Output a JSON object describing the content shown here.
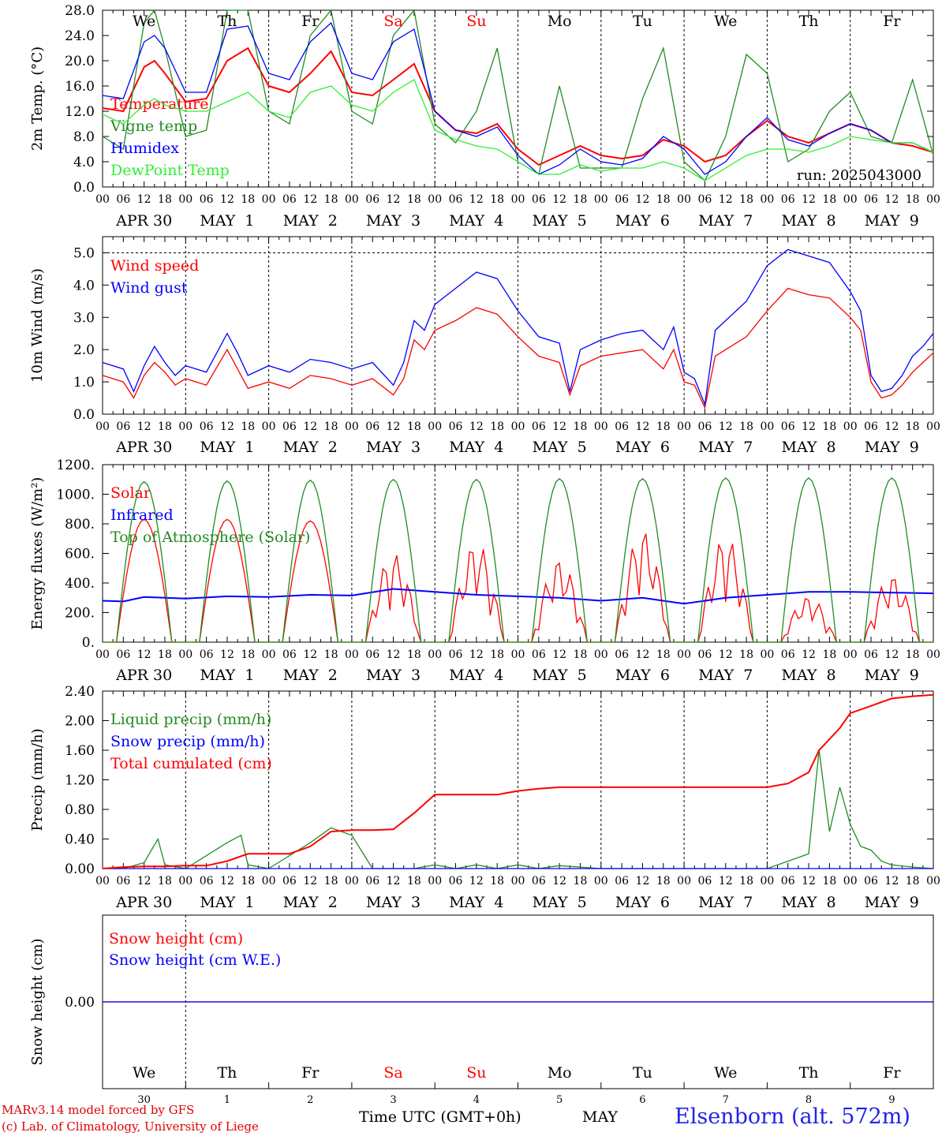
{
  "chart_data": [
    {
      "type": "line",
      "ylabel": "2m Temp. (°C)",
      "ylim": [
        0,
        28
      ],
      "yticks": [
        "0.0",
        "4.0",
        "8.0",
        "12.0",
        "16.0",
        "20.0",
        "24.0",
        "28.0"
      ],
      "annotation": "run: 2025043000",
      "x_unit": "hours from 2025-04-30 00 UTC",
      "series": [
        {
          "name": "Temperature",
          "color": "#ff0000",
          "x": [
            0,
            6,
            12,
            15,
            18,
            24,
            30,
            36,
            42,
            48,
            54,
            60,
            66,
            72,
            78,
            84,
            90,
            96,
            102,
            108,
            114,
            120,
            126,
            132,
            138,
            144,
            150,
            156,
            162,
            168,
            174,
            180,
            186,
            192,
            198,
            204,
            210,
            216,
            222,
            228,
            234,
            240
          ],
          "values": [
            12.5,
            12,
            19,
            20,
            18,
            13.5,
            14,
            20,
            22,
            16,
            15,
            18,
            21.5,
            15,
            14.5,
            17,
            19.5,
            12,
            9,
            8.5,
            10,
            6,
            3.5,
            5,
            6.5,
            5,
            4.5,
            5,
            7.5,
            6.5,
            4,
            5,
            8,
            10.5,
            8,
            7,
            8.5,
            10,
            9,
            7,
            6.5,
            5.5
          ]
        },
        {
          "name": "Vigne temp",
          "color": "#228b22",
          "x": [
            0,
            6,
            12,
            15,
            18,
            24,
            30,
            36,
            42,
            48,
            54,
            60,
            66,
            72,
            78,
            84,
            90,
            96,
            102,
            108,
            114,
            120,
            126,
            132,
            138,
            144,
            150,
            156,
            162,
            168,
            174,
            180,
            186,
            192,
            198,
            204,
            210,
            216,
            222,
            228,
            234,
            240
          ],
          "values": [
            8,
            6,
            26,
            28,
            22,
            8,
            9,
            28,
            28,
            12,
            10,
            24,
            28,
            12,
            10,
            24,
            28,
            10,
            7,
            12,
            22,
            4,
            2,
            16,
            3,
            3,
            3,
            14,
            22,
            4,
            1,
            8,
            21,
            18,
            4,
            6,
            12,
            15,
            8,
            7,
            17,
            5
          ]
        },
        {
          "name": "Humidex",
          "color": "#0000ff",
          "x": [
            0,
            6,
            12,
            15,
            18,
            24,
            30,
            36,
            42,
            48,
            54,
            60,
            66,
            72,
            78,
            84,
            90,
            96,
            102,
            108,
            114,
            120,
            126,
            132,
            138,
            144,
            150,
            156,
            162,
            168,
            174,
            180,
            186,
            192,
            198,
            204,
            210,
            216,
            222,
            228,
            234,
            240
          ],
          "values": [
            14.5,
            14,
            23,
            24,
            22,
            15,
            15,
            25,
            25.5,
            18,
            17,
            23,
            26,
            18,
            17,
            23,
            25,
            12,
            9,
            8,
            9.5,
            5,
            2,
            3.5,
            6,
            4,
            3.5,
            4.5,
            8,
            6,
            2,
            4,
            8,
            11,
            7.5,
            6.5,
            8.5,
            10,
            9,
            7,
            7,
            5.5
          ]
        },
        {
          "name": "DewPoint Temp",
          "color": "#33ee33",
          "x": [
            0,
            6,
            12,
            15,
            18,
            24,
            30,
            36,
            42,
            48,
            54,
            60,
            66,
            72,
            78,
            84,
            90,
            96,
            102,
            108,
            114,
            120,
            126,
            132,
            138,
            144,
            150,
            156,
            162,
            168,
            174,
            180,
            186,
            192,
            198,
            204,
            210,
            216,
            222,
            228,
            234,
            240
          ],
          "values": [
            11.5,
            10,
            13,
            14,
            13,
            12,
            12,
            13.5,
            15,
            12,
            11,
            15,
            16,
            13,
            12,
            15,
            17,
            9,
            7.5,
            6.5,
            6,
            4,
            2,
            2,
            3.5,
            2.5,
            3,
            3,
            4,
            3,
            1,
            3,
            5,
            6,
            6,
            5.5,
            6.5,
            8,
            7.5,
            7,
            7,
            5.5
          ]
        }
      ]
    },
    {
      "type": "line",
      "ylabel": "10m Wind (m/s)",
      "ylim": [
        0,
        5.5
      ],
      "yticks": [
        "0.0",
        "1.0",
        "2.0",
        "3.0",
        "4.0",
        "5.0"
      ],
      "series": [
        {
          "name": "Wind speed",
          "color": "#ff0000",
          "x": [
            0,
            6,
            9,
            12,
            15,
            18,
            21,
            24,
            30,
            36,
            39,
            42,
            48,
            54,
            60,
            66,
            72,
            78,
            84,
            87,
            90,
            93,
            96,
            102,
            108,
            114,
            120,
            126,
            132,
            135,
            138,
            144,
            150,
            156,
            162,
            165,
            168,
            171,
            174,
            177,
            180,
            186,
            192,
            198,
            204,
            210,
            216,
            219,
            222,
            225,
            228,
            231,
            234,
            237,
            240
          ],
          "values": [
            1.2,
            1.0,
            0.5,
            1.2,
            1.6,
            1.3,
            0.9,
            1.1,
            0.9,
            2.0,
            1.4,
            0.8,
            1.0,
            0.8,
            1.2,
            1.1,
            0.9,
            1.1,
            0.6,
            1.1,
            2.3,
            2.0,
            2.6,
            2.9,
            3.3,
            3.1,
            2.4,
            1.8,
            1.6,
            0.6,
            1.5,
            1.8,
            1.9,
            2.0,
            1.4,
            2.0,
            1.0,
            0.9,
            0.2,
            1.8,
            2.0,
            2.4,
            3.2,
            3.9,
            3.7,
            3.6,
            3.0,
            2.6,
            1.0,
            0.5,
            0.6,
            0.9,
            1.3,
            1.6,
            1.9
          ]
        },
        {
          "name": "Wind gust",
          "color": "#0000ff",
          "x": [
            0,
            6,
            9,
            12,
            15,
            18,
            21,
            24,
            30,
            36,
            39,
            42,
            48,
            54,
            60,
            66,
            72,
            78,
            84,
            87,
            90,
            93,
            96,
            102,
            108,
            114,
            120,
            126,
            132,
            135,
            138,
            144,
            150,
            156,
            162,
            165,
            168,
            171,
            174,
            177,
            180,
            186,
            192,
            198,
            204,
            210,
            216,
            219,
            222,
            225,
            228,
            231,
            234,
            237,
            240
          ],
          "values": [
            1.6,
            1.4,
            0.7,
            1.5,
            2.1,
            1.6,
            1.2,
            1.5,
            1.3,
            2.5,
            1.9,
            1.2,
            1.5,
            1.3,
            1.7,
            1.6,
            1.4,
            1.6,
            0.9,
            1.6,
            2.9,
            2.6,
            3.4,
            3.9,
            4.4,
            4.2,
            3.2,
            2.4,
            2.2,
            0.7,
            2.0,
            2.3,
            2.5,
            2.6,
            2.0,
            2.7,
            1.3,
            1.1,
            0.3,
            2.6,
            2.9,
            3.5,
            4.6,
            5.1,
            4.9,
            4.7,
            3.8,
            3.2,
            1.2,
            0.7,
            0.8,
            1.2,
            1.8,
            2.1,
            2.5
          ]
        }
      ],
      "reference_line": 5.0
    },
    {
      "type": "line",
      "ylabel": "Energy fluxes (W/m²)",
      "ylim": [
        0,
        1200
      ],
      "yticks": [
        "0.",
        "200.",
        "400.",
        "600.",
        "800.",
        "1000.",
        "1200."
      ],
      "series": [
        {
          "name": "Solar",
          "color": "#ff0000",
          "daily_peaks": [
            830,
            830,
            820,
            600,
            680,
            560,
            760,
            720,
            310,
            450
          ]
        },
        {
          "name": "Infrared",
          "color": "#0000ff",
          "x": [
            0,
            6,
            12,
            24,
            36,
            48,
            60,
            72,
            84,
            96,
            108,
            120,
            132,
            144,
            156,
            168,
            180,
            192,
            204,
            216,
            228,
            240
          ],
          "values": [
            280,
            275,
            305,
            295,
            310,
            305,
            320,
            315,
            360,
            340,
            320,
            310,
            300,
            280,
            300,
            260,
            300,
            320,
            340,
            340,
            335,
            330
          ]
        },
        {
          "name": "Top of Atmosphere (Solar)",
          "color": "#228b22",
          "daily_peaks": [
            1085,
            1090,
            1095,
            1100,
            1100,
            1105,
            1105,
            1110,
            1110,
            1110
          ]
        }
      ]
    },
    {
      "type": "line",
      "ylabel": "Precip (mm/h)",
      "ylim": [
        0,
        2.4
      ],
      "yticks": [
        "0.00",
        "0.40",
        "0.80",
        "1.20",
        "1.60",
        "2.00",
        "2.40"
      ],
      "series": [
        {
          "name": "Liquid precip (mm/h)",
          "color": "#228b22",
          "x": [
            0,
            6,
            12,
            16,
            18,
            24,
            36,
            40,
            42,
            48,
            60,
            66,
            72,
            78,
            84,
            90,
            96,
            102,
            108,
            114,
            120,
            126,
            132,
            144,
            192,
            204,
            207,
            210,
            213,
            216,
            219,
            222,
            225,
            228,
            234,
            240
          ],
          "values": [
            0,
            0,
            0.08,
            0.4,
            0.05,
            0,
            0.35,
            0.45,
            0.05,
            0,
            0.35,
            0.55,
            0.45,
            0,
            0,
            0,
            0.05,
            0,
            0.05,
            0,
            0.05,
            0,
            0.04,
            0,
            0,
            0.2,
            1.6,
            0.5,
            1.1,
            0.6,
            0.3,
            0.25,
            0.1,
            0.05,
            0.02,
            0
          ]
        },
        {
          "name": "Snow precip (mm/h)",
          "color": "#0000ff",
          "values": [
            0
          ]
        },
        {
          "name": "Total cumulated (cm)",
          "color": "#ff0000",
          "x": [
            0,
            6,
            12,
            18,
            24,
            30,
            36,
            42,
            48,
            54,
            60,
            66,
            72,
            78,
            84,
            90,
            96,
            102,
            108,
            114,
            120,
            126,
            132,
            138,
            144,
            192,
            198,
            204,
            207,
            210,
            213,
            216,
            222,
            228,
            234,
            240
          ],
          "values": [
            0,
            0.02,
            0.03,
            0.03,
            0.04,
            0.04,
            0.1,
            0.2,
            0.2,
            0.2,
            0.3,
            0.5,
            0.52,
            0.52,
            0.53,
            0.75,
            1.0,
            1.0,
            1.0,
            1.0,
            1.05,
            1.08,
            1.1,
            1.1,
            1.1,
            1.1,
            1.15,
            1.3,
            1.6,
            1.75,
            1.9,
            2.1,
            2.2,
            2.3,
            2.33,
            2.35
          ]
        }
      ]
    },
    {
      "type": "line",
      "ylabel": "Snow height (cm)",
      "yticks": [
        "0.00"
      ],
      "series": [
        {
          "name": "Snow height (cm)",
          "color": "#ff0000",
          "values": [
            0
          ]
        },
        {
          "name": "Snow height (cm W.E.)",
          "color": "#0000ff",
          "values": [
            0
          ]
        }
      ]
    }
  ],
  "x_axis": {
    "hour_labels": [
      "00",
      "06",
      "12",
      "18"
    ],
    "final_hour_label": "00",
    "date_labels": [
      "APR 30",
      "MAY  1",
      "MAY  2",
      "MAY  3",
      "MAY  4",
      "MAY  5",
      "MAY  6",
      "MAY  7",
      "MAY  8",
      "MAY  9"
    ],
    "weekdays": [
      "We",
      "Th",
      "Fr",
      "Sa",
      "Su",
      "Mo",
      "Tu",
      "We",
      "Th",
      "Fr"
    ],
    "weekend_indices": [
      3,
      4
    ],
    "bottom_day_numbers": [
      "30",
      "1",
      "2",
      "3",
      "4",
      "5",
      "6",
      "7",
      "8",
      "9"
    ]
  },
  "footer": {
    "credit_line1": "MARv3.14 model forced by GFS",
    "credit_line2": "(c) Lab. of Climatology, University of Liege",
    "xtitle": "Time UTC (GMT+0h)",
    "month": "MAY",
    "station": "Elsenborn (alt. 572m)"
  },
  "colors": {
    "red": "#ff0000",
    "green": "#228b22",
    "blue": "#0000ff",
    "lightgreen": "#33ee33",
    "weekday": "#000000",
    "weekend": "#ff0000"
  }
}
